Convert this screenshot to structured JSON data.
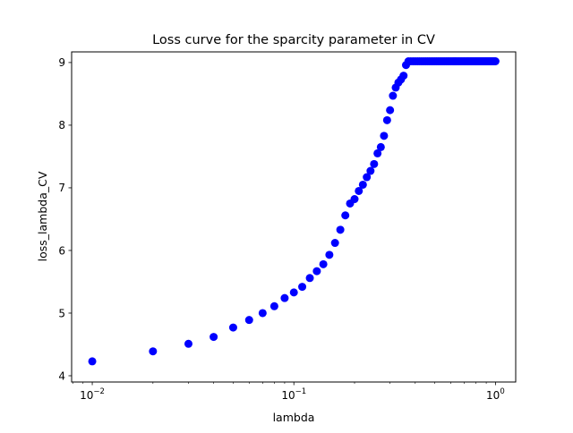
{
  "chart_data": {
    "type": "scatter",
    "title": "Loss curve for the sparcity parameter in CV",
    "xlabel": "lambda",
    "ylabel": "loss_lambda_CV",
    "xscale": "log",
    "xlim": [
      0.0079,
      1.26
    ],
    "ylim": [
      3.9,
      9.17
    ],
    "x_ticks": [
      {
        "value": 0.01,
        "base": "10",
        "exp": "−2"
      },
      {
        "value": 0.1,
        "base": "10",
        "exp": "−1"
      },
      {
        "value": 1,
        "base": "10",
        "exp": "0"
      }
    ],
    "y_ticks": [
      4,
      5,
      6,
      7,
      8,
      9
    ],
    "y_tick_labels": [
      "4",
      "5",
      "6",
      "7",
      "8",
      "9"
    ],
    "grid": false,
    "marker_color": "#0000ff",
    "series": [
      {
        "x": [
          0.01,
          0.02,
          0.03,
          0.04,
          0.05,
          0.06,
          0.07,
          0.08,
          0.09,
          0.1,
          0.11,
          0.12,
          0.13,
          0.14,
          0.15,
          0.16,
          0.17,
          0.18,
          0.19,
          0.2,
          0.21,
          0.22,
          0.23,
          0.24,
          0.25,
          0.26,
          0.27,
          0.28,
          0.29,
          0.3,
          0.31,
          0.32,
          0.33,
          0.34,
          0.35,
          0.36,
          0.37,
          0.38,
          0.39,
          0.4,
          0.41,
          0.42,
          0.43,
          0.44,
          0.45,
          0.46,
          0.47,
          0.48,
          0.49,
          0.5,
          0.51,
          0.52,
          0.53,
          0.54,
          0.55,
          0.56,
          0.57,
          0.58,
          0.59,
          0.6,
          0.61,
          0.62,
          0.63,
          0.64,
          0.65,
          0.66,
          0.67,
          0.68,
          0.69,
          0.7,
          0.71,
          0.72,
          0.73,
          0.74,
          0.75,
          0.76,
          0.77,
          0.78,
          0.79,
          0.8,
          0.81,
          0.82,
          0.83,
          0.84,
          0.85,
          0.86,
          0.87,
          0.88,
          0.89,
          0.9,
          0.91,
          0.92,
          0.93,
          0.94,
          0.95,
          0.96,
          0.97,
          0.98,
          0.99,
          1.0
        ],
        "y": [
          4.23,
          4.39,
          4.51,
          4.62,
          4.77,
          4.89,
          5.0,
          5.11,
          5.24,
          5.33,
          5.42,
          5.56,
          5.67,
          5.78,
          5.93,
          6.12,
          6.33,
          6.56,
          6.75,
          6.82,
          6.95,
          7.05,
          7.17,
          7.27,
          7.38,
          7.55,
          7.65,
          7.83,
          8.08,
          8.24,
          8.47,
          8.6,
          8.68,
          8.73,
          8.79,
          8.96,
          9.02,
          9.02,
          9.02,
          9.02,
          9.02,
          9.02,
          9.02,
          9.02,
          9.02,
          9.02,
          9.02,
          9.02,
          9.02,
          9.02,
          9.02,
          9.02,
          9.02,
          9.02,
          9.02,
          9.02,
          9.02,
          9.02,
          9.02,
          9.02,
          9.02,
          9.02,
          9.02,
          9.02,
          9.02,
          9.02,
          9.02,
          9.02,
          9.02,
          9.02,
          9.02,
          9.02,
          9.02,
          9.02,
          9.02,
          9.02,
          9.02,
          9.02,
          9.02,
          9.02,
          9.02,
          9.02,
          9.02,
          9.02,
          9.02,
          9.02,
          9.02,
          9.02,
          9.02,
          9.02,
          9.02,
          9.02,
          9.02,
          9.02,
          9.02,
          9.02,
          9.02,
          9.02,
          9.02,
          9.02
        ]
      }
    ]
  }
}
